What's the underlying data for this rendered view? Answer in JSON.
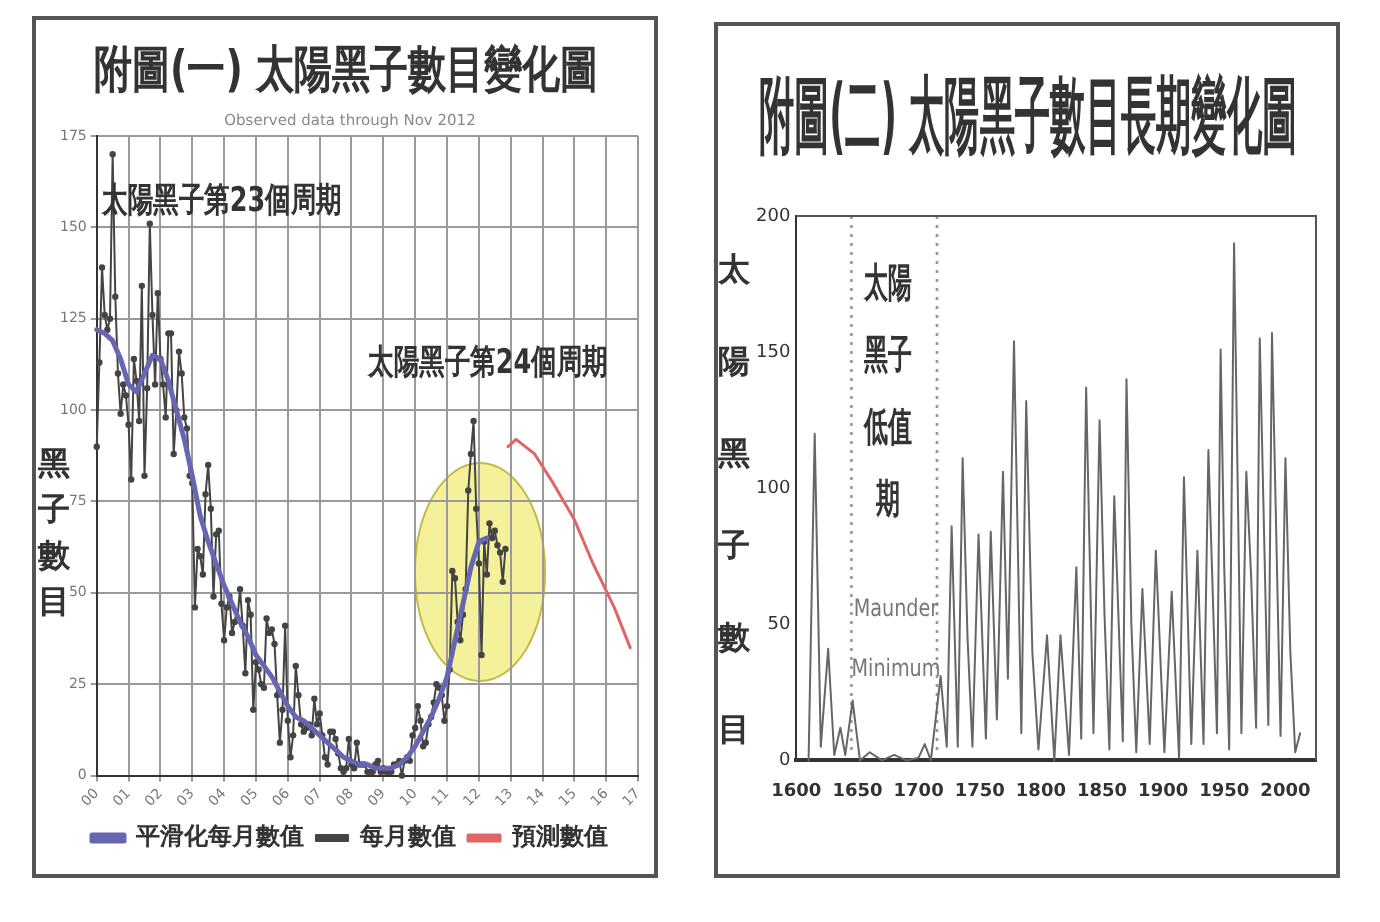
{
  "chart_data": [
    {
      "type": "line",
      "title": "附圖(一) 太陽黑子數目變化圖",
      "subtitle": "Observed data through Nov 2012",
      "ylabel": "黑子數目",
      "xlim": [
        "2000",
        "2017"
      ],
      "xticks": [
        {
          "value": "2000",
          "label": "00"
        },
        {
          "value": "2001",
          "label": "01"
        },
        {
          "value": "2002",
          "label": "02"
        },
        {
          "value": "2003",
          "label": "03"
        },
        {
          "value": "2004",
          "label": "04"
        },
        {
          "value": "2005",
          "label": "05"
        },
        {
          "value": "2006",
          "label": "06"
        },
        {
          "value": "2007",
          "label": "07"
        },
        {
          "value": "2008",
          "label": "08"
        },
        {
          "value": "2009",
          "label": "09"
        },
        {
          "value": "2010",
          "label": "10"
        },
        {
          "value": "2011",
          "label": "11"
        },
        {
          "value": "2012",
          "label": "12"
        },
        {
          "value": "2013",
          "label": "13"
        },
        {
          "value": "2014",
          "label": "14"
        },
        {
          "value": "2015",
          "label": "15"
        },
        {
          "value": "2016",
          "label": "16"
        },
        {
          "value": "2017",
          "label": "17"
        }
      ],
      "ylim": [
        0,
        175
      ],
      "yticks": [
        0,
        25,
        50,
        75,
        100,
        125,
        150,
        175
      ],
      "grid": true,
      "legend": "bottom",
      "annotations": [
        "太陽黑子第23個周期",
        "太陽黑子第24個周期"
      ],
      "series": [
        {
          "name": "平滑化每月數值",
          "color": "#6666b3",
          "marker": "none",
          "x": [
            "2000-01",
            "2000-04",
            "2000-07",
            "2000-10",
            "2001-01",
            "2001-04",
            "2001-07",
            "2001-10",
            "2002-01",
            "2002-04",
            "2002-07",
            "2002-10",
            "2003-01",
            "2003-04",
            "2003-07",
            "2003-10",
            "2004-01",
            "2004-04",
            "2004-07",
            "2004-10",
            "2005-01",
            "2005-04",
            "2005-07",
            "2005-10",
            "2006-01",
            "2006-04",
            "2006-07",
            "2006-10",
            "2007-01",
            "2007-04",
            "2007-07",
            "2007-10",
            "2008-01",
            "2008-04",
            "2008-07",
            "2008-10",
            "2009-01",
            "2009-04",
            "2009-07",
            "2009-10",
            "2010-01",
            "2010-04",
            "2010-07",
            "2010-10",
            "2011-01",
            "2011-04",
            "2011-07",
            "2011-10",
            "2012-01",
            "2012-04"
          ],
          "values": [
            122,
            121,
            119,
            114,
            107,
            105,
            110,
            115,
            114,
            108,
            100,
            92,
            82,
            71,
            64,
            58,
            52,
            47,
            42,
            38,
            33,
            30,
            27,
            23,
            19,
            16,
            15,
            13,
            11,
            9,
            7,
            5,
            4,
            3,
            3,
            2,
            2,
            2,
            3,
            5,
            8,
            12,
            16,
            21,
            27,
            37,
            47,
            57,
            64,
            65
          ]
        },
        {
          "name": "每月數值",
          "color": "#444444",
          "marker": "circle",
          "x": [
            "2000-01",
            "2000-02",
            "2000-03",
            "2000-04",
            "2000-05",
            "2000-06",
            "2000-07",
            "2000-08",
            "2000-09",
            "2000-10",
            "2000-11",
            "2000-12",
            "2001-01",
            "2001-02",
            "2001-03",
            "2001-04",
            "2001-05",
            "2001-06",
            "2001-07",
            "2001-08",
            "2001-09",
            "2001-10",
            "2001-11",
            "2001-12",
            "2002-01",
            "2002-02",
            "2002-03",
            "2002-04",
            "2002-05",
            "2002-06",
            "2002-07",
            "2002-08",
            "2002-09",
            "2002-10",
            "2002-11",
            "2002-12",
            "2003-01",
            "2003-02",
            "2003-03",
            "2003-04",
            "2003-05",
            "2003-06",
            "2003-07",
            "2003-08",
            "2003-09",
            "2003-10",
            "2003-11",
            "2003-12",
            "2004-01",
            "2004-02",
            "2004-03",
            "2004-04",
            "2004-05",
            "2004-06",
            "2004-07",
            "2004-08",
            "2004-09",
            "2004-10",
            "2004-11",
            "2004-12",
            "2005-01",
            "2005-02",
            "2005-03",
            "2005-04",
            "2005-05",
            "2005-06",
            "2005-07",
            "2005-08",
            "2005-09",
            "2005-10",
            "2005-11",
            "2005-12",
            "2006-01",
            "2006-02",
            "2006-03",
            "2006-04",
            "2006-05",
            "2006-06",
            "2006-07",
            "2006-08",
            "2006-09",
            "2006-10",
            "2006-11",
            "2006-12",
            "2007-01",
            "2007-02",
            "2007-03",
            "2007-04",
            "2007-05",
            "2007-06",
            "2007-07",
            "2007-08",
            "2007-09",
            "2007-10",
            "2007-11",
            "2007-12",
            "2008-01",
            "2008-02",
            "2008-03",
            "2008-04",
            "2008-05",
            "2008-06",
            "2008-07",
            "2008-08",
            "2008-09",
            "2008-10",
            "2008-11",
            "2008-12",
            "2009-01",
            "2009-02",
            "2009-03",
            "2009-04",
            "2009-05",
            "2009-06",
            "2009-07",
            "2009-08",
            "2009-09",
            "2009-10",
            "2009-11",
            "2009-12",
            "2010-01",
            "2010-02",
            "2010-03",
            "2010-04",
            "2010-05",
            "2010-06",
            "2010-07",
            "2010-08",
            "2010-09",
            "2010-10",
            "2010-11",
            "2010-12",
            "2011-01",
            "2011-02",
            "2011-03",
            "2011-04",
            "2011-05",
            "2011-06",
            "2011-07",
            "2011-08",
            "2011-09",
            "2011-10",
            "2011-11",
            "2011-12",
            "2012-01",
            "2012-02",
            "2012-03",
            "2012-04",
            "2012-05",
            "2012-06",
            "2012-07",
            "2012-08",
            "2012-09",
            "2012-10",
            "2012-11"
          ],
          "values": [
            90,
            113,
            139,
            126,
            122,
            125,
            170,
            131,
            110,
            99,
            107,
            104,
            96,
            81,
            114,
            108,
            97,
            134,
            82,
            106,
            151,
            126,
            107,
            132,
            114,
            107,
            98,
            121,
            121,
            88,
            100,
            116,
            110,
            98,
            95,
            82,
            80,
            46,
            62,
            60,
            55,
            77,
            85,
            73,
            49,
            66,
            67,
            47,
            37,
            46,
            49,
            39,
            42,
            43,
            51,
            41,
            28,
            48,
            44,
            18,
            31,
            29,
            25,
            24,
            43,
            39,
            40,
            36,
            22,
            9,
            18,
            41,
            15,
            5,
            11,
            30,
            22,
            14,
            12,
            13,
            14,
            11,
            21,
            14,
            17,
            11,
            5,
            3,
            12,
            12,
            10,
            6,
            2,
            1,
            2,
            10,
            3,
            2,
            9,
            3,
            3,
            3,
            1,
            1,
            1,
            3,
            4,
            1,
            2,
            1,
            1,
            1,
            3,
            3,
            4,
            0,
            4,
            5,
            4,
            11,
            13,
            19,
            15,
            8,
            9,
            14,
            16,
            20,
            25,
            24,
            22,
            15,
            19,
            29,
            56,
            54,
            42,
            37,
            44,
            51,
            78,
            88,
            97,
            73,
            58,
            33,
            64,
            55,
            69,
            65,
            67,
            63,
            61,
            53,
            62
          ]
        },
        {
          "name": "預測數值",
          "color": "#e06666",
          "marker": "none",
          "x": [
            "2012-12",
            "2013-03",
            "2013-10",
            "2014-05",
            "2015-01",
            "2015-08",
            "2016-04",
            "2016-10"
          ],
          "values": [
            90,
            92,
            88,
            80,
            70,
            58,
            46,
            35
          ]
        }
      ]
    },
    {
      "type": "line",
      "title": "附圖(二) 太陽黑子數目長期變化圖",
      "ylabel": "太陽黑子數目",
      "xlim": [
        1600,
        2025
      ],
      "xticks": [
        1600,
        1650,
        1700,
        1750,
        1800,
        1850,
        1900,
        1950,
        2000
      ],
      "ylim": [
        0,
        200
      ],
      "yticks": [
        0,
        50,
        100,
        150,
        200
      ],
      "ref_lines": [
        {
          "axis": "x",
          "value": 1645,
          "line_style": "dotted",
          "color": "#999999"
        },
        {
          "axis": "x",
          "value": 1715,
          "line_style": "dotted",
          "color": "#999999"
        }
      ],
      "annotations": [
        "太陽黑子低值期",
        "Maunder Minimum"
      ],
      "series": [
        {
          "color": "#666666",
          "x": [
            1610,
            1615,
            1620,
            1626,
            1631,
            1636,
            1640,
            1646,
            1652,
            1660,
            1670,
            1680,
            1690,
            1700,
            1705,
            1710,
            1718,
            1723,
            1727,
            1732,
            1736,
            1740,
            1744,
            1749,
            1755,
            1759,
            1764,
            1769,
            1773,
            1778,
            1784,
            1788,
            1793,
            1798,
            1805,
            1811,
            1816,
            1823,
            1829,
            1833,
            1837,
            1843,
            1848,
            1852,
            1856,
            1860,
            1867,
            1870,
            1874,
            1878,
            1883,
            1889,
            1894,
            1901,
            1907,
            1913,
            1917,
            1923,
            1928,
            1933,
            1937,
            1944,
            1947,
            1950,
            1954,
            1958,
            1964,
            1968,
            1972,
            1976,
            1979,
            1986,
            1989,
            1996,
            2000,
            2004,
            2008,
            2012
          ],
          "values": [
            0,
            120,
            5,
            41,
            2,
            12,
            2,
            22,
            0,
            3,
            0,
            2,
            0,
            1,
            6,
            0,
            31,
            5,
            86,
            5,
            111,
            45,
            5,
            83,
            8,
            84,
            15,
            106,
            30,
            154,
            10,
            132,
            40,
            4,
            46,
            0,
            46,
            2,
            71,
            8,
            137,
            10,
            125,
            54,
            4,
            97,
            7,
            140,
            50,
            3,
            63,
            6,
            77,
            3,
            62,
            1,
            104,
            6,
            77,
            6,
            114,
            10,
            151,
            70,
            4,
            190,
            10,
            106,
            67,
            12,
            155,
            13,
            157,
            9,
            111,
            40,
            3,
            10
          ]
        }
      ]
    }
  ]
}
